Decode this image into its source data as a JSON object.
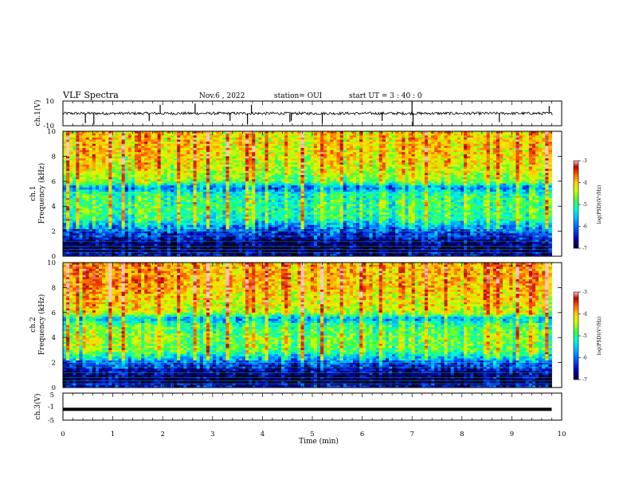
{
  "header": {
    "title": "VLF Spectra",
    "date": "Nov.6  , 2022",
    "station": "station= OUI",
    "start": "start  UT  =   3  : 40 : 0"
  },
  "colors": {
    "axes": "#000000",
    "background": "#ffffff",
    "waveform": "#000000",
    "colormap": [
      "#000030",
      "#0000b0",
      "#0050ff",
      "#00b4ff",
      "#00ffd0",
      "#40ff40",
      "#d0ff00",
      "#ffd000",
      "#ff6000",
      "#c00000",
      "#ffc8c8"
    ]
  },
  "chart_data": [
    {
      "type": "line",
      "name": "ch1-waveform",
      "ylabel": "ch.1(V)",
      "ylim": [
        -10,
        10
      ],
      "yticks": [
        "10",
        "-10"
      ],
      "xlim": [
        0,
        10
      ],
      "baseline": 0,
      "spike_times_min": [
        0.45,
        0.62,
        1.73,
        1.95,
        2.65,
        3.35,
        3.7,
        3.78,
        4.55,
        4.58,
        5.2,
        6.4,
        7.0,
        7.02,
        8.75,
        9.75
      ],
      "spike_amplitudes": [
        -8,
        -9,
        -6,
        7,
        8,
        -6,
        -9,
        7,
        -7,
        -6,
        -8,
        -6,
        10,
        -10,
        -7,
        6
      ]
    },
    {
      "type": "heatmap",
      "name": "ch1-spectrogram",
      "ylabel": "ch.1\nFrequency  (kHz)",
      "ylim": [
        0,
        10
      ],
      "yticks": [
        "0",
        "2",
        "4",
        "6",
        "8",
        "10"
      ],
      "xlim": [
        0,
        10
      ],
      "zlabel": "log(PSD)(V²/Hz)",
      "zlim": [
        -7,
        -3
      ],
      "zticks": [
        "-3",
        "-4",
        "-5",
        "-6",
        "-7"
      ],
      "band_profile_khz": [
        0,
        0.5,
        1,
        1.5,
        2,
        2.5,
        3,
        4,
        5,
        5.5,
        6,
        7,
        8,
        10
      ],
      "band_profile_logpsd": [
        -6.6,
        -6.9,
        -6.8,
        -6.5,
        -6.2,
        -5.9,
        -5.3,
        -5.2,
        -5.4,
        -6.1,
        -4.9,
        -4.6,
        -4.4,
        -4.3
      ],
      "sferic_times_min": [
        0.1,
        0.3,
        0.45,
        0.6,
        0.95,
        1.2,
        1.5,
        1.7,
        1.95,
        2.3,
        2.65,
        2.9,
        3.3,
        3.7,
        3.8,
        4.1,
        4.5,
        4.8,
        5.2,
        5.6,
        6.0,
        6.4,
        6.8,
        7.0,
        7.3,
        7.7,
        8.1,
        8.5,
        8.75,
        9.1,
        9.4,
        9.7
      ]
    },
    {
      "type": "heatmap",
      "name": "ch2-spectrogram",
      "ylabel": "ch.2\nFrequency  (kHz)",
      "ylim": [
        0,
        10
      ],
      "yticks": [
        "0",
        "2",
        "4",
        "6",
        "8",
        "10"
      ],
      "xlim": [
        0,
        10
      ],
      "zlabel": "log(PSD)(V²/Hz)",
      "zlim": [
        -7,
        -3
      ],
      "zticks": [
        "-3",
        "-4",
        "-5",
        "-6",
        "-7"
      ],
      "band_profile_khz": [
        0,
        0.5,
        1,
        1.5,
        2,
        2.5,
        3,
        4,
        5,
        5.5,
        6,
        7,
        8,
        10
      ],
      "band_profile_logpsd": [
        -6.4,
        -6.9,
        -6.8,
        -6.5,
        -6.1,
        -5.6,
        -5.0,
        -4.9,
        -5.2,
        -5.9,
        -4.6,
        -4.4,
        -4.2,
        -4.1
      ],
      "sferic_times_min": [
        0.1,
        0.3,
        0.45,
        0.6,
        0.95,
        1.2,
        1.5,
        1.7,
        1.95,
        2.3,
        2.65,
        2.9,
        3.3,
        3.7,
        3.8,
        4.1,
        4.5,
        4.8,
        5.2,
        5.6,
        6.0,
        6.4,
        6.8,
        7.0,
        7.3,
        7.7,
        8.1,
        8.5,
        8.75,
        9.1,
        9.4,
        9.7
      ]
    },
    {
      "type": "line",
      "name": "ch3-waveform",
      "ylabel": "ch.3(V)",
      "ylim": [
        -5,
        5
      ],
      "yticks": [
        "5",
        "-1",
        "-5"
      ],
      "xlim": [
        0,
        10
      ],
      "baseline": -1,
      "data_end_min": 9.8
    }
  ],
  "xaxis": {
    "label": "Time  (min)",
    "ticks": [
      "0",
      "1",
      "2",
      "3",
      "4",
      "5",
      "6",
      "7",
      "8",
      "9",
      "10"
    ]
  }
}
